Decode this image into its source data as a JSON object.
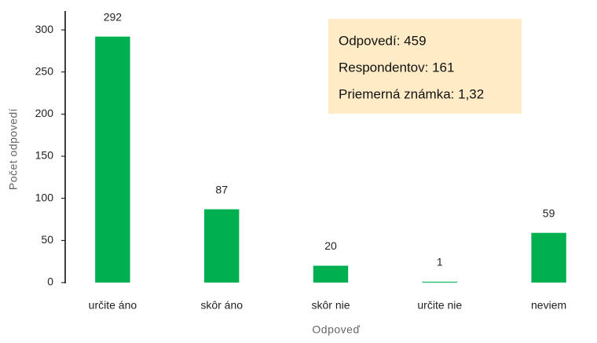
{
  "chart_data": {
    "type": "bar",
    "x_label": "Odpoveď",
    "y_label": "Počet odpovedí",
    "categories": [
      "určite áno",
      "skôr áno",
      "skôr nie",
      "určite nie",
      "neviem"
    ],
    "values": [
      292,
      87,
      20,
      1,
      59
    ],
    "color": "#00b050",
    "ylim": [
      0,
      320
    ],
    "yticks": [
      0,
      50,
      100,
      150,
      200,
      250,
      300
    ],
    "annotations": [
      "Odpovedí: 459",
      "Respondentov: 161",
      "Priemerná známka: 1,32"
    ]
  }
}
